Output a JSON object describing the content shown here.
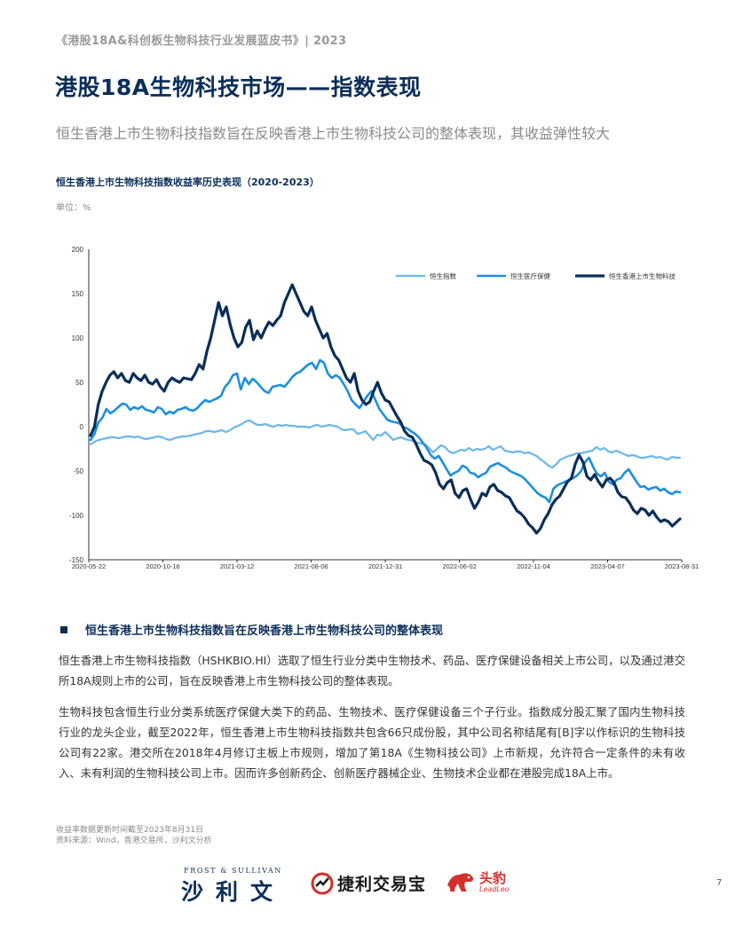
{
  "header": {
    "running_title": "《港股18A&科创板生物科技行业发展蓝皮书》| 2023",
    "page_title": "港股18A生物科技市场——指数表现",
    "subtitle": "恒生香港上市生物科技指数旨在反映香港上市生物科技公司的整体表现，其收益弹性较大"
  },
  "chart": {
    "title": "恒生香港上市生物科技指数收益率历史表现（2020-2023）",
    "unit": "单位：%"
  },
  "chart_data": {
    "type": "line",
    "y_ticks": [
      "200",
      "150",
      "100",
      "50",
      "0",
      "-50",
      "-100",
      "-150"
    ],
    "ylim": [
      -150,
      200
    ],
    "x_ticks": [
      "2020-05-22",
      "2020-10-16",
      "2021-03-12",
      "2021-08-06",
      "2021-12-31",
      "2022-06-02",
      "2022-11-04",
      "2023-04-07",
      "2023-08-31"
    ],
    "legend_position": "top-right",
    "grid": false,
    "series": [
      {
        "name": "恒生指数",
        "color": "#6cb7ea",
        "values": [
          -20,
          -17,
          -15,
          -14,
          -13,
          -12,
          -12,
          -13,
          -12,
          -11,
          -11,
          -12,
          -11,
          -13,
          -14,
          -13,
          -12,
          -11,
          -12,
          -14,
          -15,
          -13,
          -12,
          -11,
          -11,
          -10,
          -9,
          -8,
          -7,
          -5,
          -5,
          -6,
          -5,
          -4,
          -6,
          -4,
          -1,
          1,
          3,
          6,
          7,
          4,
          2,
          2,
          3,
          1,
          0,
          2,
          1,
          2,
          1,
          1,
          0,
          0,
          0,
          -1,
          1,
          2,
          0,
          1,
          2,
          1,
          0,
          -3,
          -4,
          -3,
          -3,
          -8,
          -7,
          -5,
          -10,
          -15,
          -9,
          -10,
          -6,
          -10,
          -15,
          -13,
          -12,
          -14,
          -15,
          -16,
          -18,
          -19,
          -20,
          -24,
          -29,
          -25,
          -21,
          -23,
          -28,
          -30,
          -28,
          -26,
          -27,
          -24,
          -27,
          -25,
          -26,
          -25,
          -22,
          -26,
          -24,
          -22,
          -27,
          -28,
          -29,
          -28,
          -28,
          -30,
          -29,
          -31,
          -33,
          -37,
          -40,
          -44,
          -46,
          -42,
          -37,
          -35,
          -33,
          -32,
          -30,
          -30,
          -29,
          -28,
          -27,
          -23,
          -26,
          -24,
          -28,
          -29,
          -27,
          -29,
          -31,
          -33,
          -32,
          -33,
          -35,
          -35,
          -34,
          -33,
          -35,
          -34,
          -36,
          -37,
          -34,
          -35,
          -35
        ],
        "width": 2.2
      },
      {
        "name": "恒生医疗保健",
        "color": "#1d8fe0",
        "values": [
          -15,
          -8,
          5,
          10,
          20,
          15,
          18,
          22,
          26,
          25,
          19,
          22,
          20,
          23,
          19,
          18,
          16,
          22,
          20,
          14,
          17,
          15,
          19,
          20,
          22,
          19,
          18,
          21,
          26,
          30,
          28,
          30,
          32,
          35,
          45,
          50,
          58,
          60,
          42,
          55,
          48,
          54,
          50,
          45,
          40,
          38,
          45,
          46,
          47,
          45,
          50,
          56,
          60,
          62,
          66,
          70,
          72,
          65,
          75,
          72,
          60,
          55,
          58,
          55,
          48,
          40,
          30,
          25,
          21,
          28,
          35,
          40,
          30,
          20,
          14,
          8,
          6,
          5,
          4,
          0,
          -2,
          -5,
          -8,
          -12,
          -18,
          -24,
          -32,
          -36,
          -33,
          -40,
          -48,
          -55,
          -52,
          -50,
          -44,
          -46,
          -52,
          -53,
          -57,
          -54,
          -52,
          -45,
          -43,
          -41,
          -44,
          -46,
          -50,
          -52,
          -54,
          -56,
          -60,
          -65,
          -70,
          -75,
          -78,
          -80,
          -85,
          -70,
          -66,
          -64,
          -62,
          -60,
          -58,
          -55,
          -50,
          -40,
          -35,
          -45,
          -53,
          -56,
          -52,
          -62,
          -65,
          -60,
          -58,
          -52,
          -48,
          -55,
          -62,
          -68,
          -67,
          -71,
          -69,
          -68,
          -72,
          -70,
          -74,
          -76,
          -73,
          -74
        ],
        "width": 2.6
      },
      {
        "name": "恒生香港上市生物科技",
        "color": "#0b2e59",
        "values": [
          -10,
          0,
          25,
          40,
          50,
          58,
          62,
          55,
          60,
          52,
          50,
          60,
          55,
          52,
          58,
          50,
          48,
          53,
          45,
          40,
          50,
          55,
          52,
          50,
          55,
          54,
          53,
          60,
          70,
          65,
          85,
          100,
          120,
          140,
          125,
          135,
          115,
          100,
          90,
          95,
          112,
          120,
          98,
          108,
          100,
          110,
          118,
          114,
          120,
          125,
          140,
          150,
          160,
          150,
          140,
          130,
          125,
          135,
          120,
          110,
          100,
          105,
          90,
          80,
          75,
          65,
          55,
          50,
          60,
          40,
          30,
          25,
          28,
          40,
          50,
          38,
          30,
          28,
          20,
          12,
          5,
          -5,
          -10,
          -12,
          -20,
          -30,
          -38,
          -40,
          -43,
          -52,
          -65,
          -70,
          -63,
          -60,
          -75,
          -80,
          -72,
          -70,
          -82,
          -92,
          -85,
          -75,
          -78,
          -68,
          -65,
          -72,
          -74,
          -78,
          -80,
          -88,
          -95,
          -98,
          -103,
          -110,
          -114,
          -120,
          -115,
          -105,
          -98,
          -88,
          -82,
          -78,
          -70,
          -62,
          -58,
          -42,
          -32,
          -40,
          -56,
          -60,
          -54,
          -62,
          -68,
          -60,
          -58,
          -63,
          -74,
          -79,
          -80,
          -86,
          -94,
          -98,
          -92,
          -94,
          -100,
          -95,
          -102,
          -107,
          -105,
          -107,
          -112,
          -108,
          -104
        ],
        "width": 3.2
      }
    ]
  },
  "section": {
    "heading": "恒生香港上市生物科技指数旨在反映香港上市生物科技公司的整体表现",
    "para1": "恒生香港上市生物科技指数（HSHKBIO.HI）选取了恒生行业分类中生物技术、药品、医疗保健设备相关上市公司，以及通过港交所18A规则上市的公司，旨在反映香港上市生物科技公司的整体表现。",
    "para2": "生物科技包含恒生行业分类系统医疗保健大类下的药品、生物技术、医疗保健设备三个子行业。指数成分股汇聚了国内生物科技行业的龙头企业，截至2022年，恒生香港上市生物科技指数共包含66只成份股，其中公司名称结尾有[B]字以作标识的生物科技公司有22家。港交所在2018年4月修订主板上市规则，增加了第18A《生物科技公司》上市新规，允许符合一定条件的未有收入、未有利润的生物科技公司上市。因而许多创新药企、创新医疗器械企业、生物技术企业都在港股完成18A上市。"
  },
  "footnotes": {
    "note1": "收益率数据更新时间截至2023年8月31日",
    "note2": "资料来源：Wind，香港交易所，沙利文分析"
  },
  "logos": {
    "frost_small": "FROST & SULLIVAN",
    "frost_big": "沙利文",
    "jieli": "捷利交易宝",
    "toubao": "头豹",
    "toubao_sub": "LeadLeo"
  },
  "page_number": "7"
}
